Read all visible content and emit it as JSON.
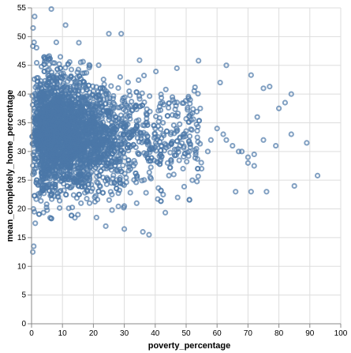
{
  "chart_data": {
    "type": "scatter",
    "title": "",
    "xlabel": "poverty_percentage",
    "ylabel": "mean_completely_home_percentage",
    "xlim": [
      0,
      100
    ],
    "ylim": [
      0,
      55
    ],
    "x_ticks": [
      0,
      10,
      20,
      30,
      40,
      50,
      60,
      70,
      80,
      90,
      100
    ],
    "y_ticks": [
      0,
      5,
      10,
      15,
      20,
      25,
      30,
      35,
      40,
      45,
      50,
      55
    ],
    "grid": true,
    "marker": "open-circle",
    "color": "#4c78a8",
    "series": [
      {
        "x": [
          1.0,
          0.5,
          0.8,
          0.6,
          0.9,
          1.2,
          0.7,
          0.4,
          6.4,
          11.0,
          8.0,
          25.0,
          29.0,
          24.0,
          30.0,
          47.0,
          54.0,
          63.0,
          71.0,
          61.0,
          75.0,
          77.0,
          73.0,
          70.0,
          72.0,
          84.0,
          82.0,
          80.0,
          85.0,
          76.0,
          66.0,
          71.0,
          89.0,
          92.5,
          79.0,
          84.0,
          72.0,
          75.0,
          70.0,
          67.0,
          63.0,
          60.0,
          57.0,
          55.0,
          52.0,
          49.0,
          46.0,
          44.0,
          42.0,
          36.0,
          38.0,
          34.0,
          30.0,
          26.0,
          22.0,
          18.0,
          16.0,
          15.0,
          21.0,
          9.0,
          5.0,
          3.0,
          2.0,
          4.0,
          12.0,
          14.0,
          17.0,
          19.0,
          23.0,
          27.0,
          31.0,
          33.0,
          37.0,
          40.0,
          45.0,
          48.0,
          51.0,
          58.0,
          62.0,
          65.0,
          68.0
        ],
        "y": [
          53.5,
          51.5,
          49.0,
          20.0,
          19.5,
          17.5,
          13.5,
          12.5,
          54.8,
          52.0,
          49.0,
          50.5,
          50.5,
          17.0,
          16.5,
          44.5,
          45.8,
          45.0,
          43.3,
          42.0,
          41.0,
          41.3,
          36.0,
          29.0,
          29.5,
          40.0,
          38.5,
          37.5,
          24.0,
          23.0,
          23.0,
          23.0,
          31.5,
          25.8,
          31.0,
          33.0,
          27.5,
          32.0,
          28.0,
          30.0,
          32.0,
          34.0,
          30.0,
          27.0,
          25.0,
          27.0,
          26.0,
          28.0,
          31.0,
          16.0,
          15.5,
          21.0,
          20.5,
          22.5,
          24.0,
          23.0,
          21.0,
          19.0,
          18.5,
          23.0,
          24.0,
          28.0,
          30.0,
          36.0,
          38.0,
          37.0,
          35.0,
          33.0,
          32.0,
          34.0,
          36.0,
          33.0,
          35.0,
          34.0,
          33.0,
          31.0,
          30.0,
          32.0,
          33.0,
          31.0,
          30.0
        ]
      }
    ]
  }
}
